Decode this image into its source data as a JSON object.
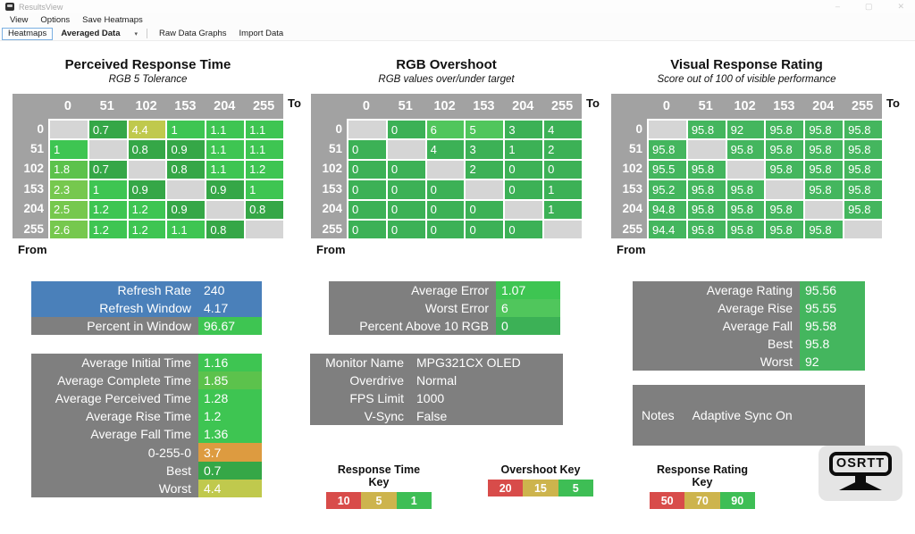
{
  "window": {
    "title": "ResultsView",
    "controls": {
      "minimize": "–",
      "maximize": "▢",
      "close": "✕"
    }
  },
  "menu": {
    "items": [
      "View",
      "Options",
      "Save Heatmaps"
    ]
  },
  "toolbar": {
    "heatmaps": "Heatmaps",
    "view_selected": "Averaged Data",
    "caret": "▾",
    "raw_data_graphs": "Raw Data Graphs",
    "import_data": "Import Data"
  },
  "labels": {
    "to": "To",
    "from": "From"
  },
  "colors": {
    "bright_green": "#3ec552",
    "dark_green": "#35a747",
    "light_green": "#5cc24c",
    "lime_green": "#76c84e",
    "yellow_green": "#c0c94d",
    "orange": "#dd9b40",
    "overshoot_green": "#3cb156",
    "overshoot_light_green": "#50c65c",
    "rating_green": "#44b65e",
    "key_red": "#d84c4a",
    "key_tan": "#cdb44d",
    "key_green": "#3ebe55",
    "blue": "#4a80ba",
    "box_gray": "#7f7f7f",
    "table_header_gray": "#a2a2a2",
    "diag": "#d5d5d5"
  },
  "tables": [
    {
      "title": "Perceived Response Time",
      "subtitle": "RGB 5 Tolerance",
      "columns": [
        "0",
        "51",
        "102",
        "153",
        "204",
        "255"
      ],
      "rows": [
        {
          "label": "0",
          "cells": [
            [
              "",
              "diag"
            ],
            [
              "0.7",
              "dark_green"
            ],
            [
              "4.4",
              "yellow_green"
            ],
            [
              "1",
              "bright_green"
            ],
            [
              "1.1",
              "bright_green"
            ],
            [
              "1.1",
              "bright_green"
            ]
          ]
        },
        {
          "label": "51",
          "cells": [
            [
              "1",
              "bright_green"
            ],
            [
              "",
              "diag"
            ],
            [
              "0.8",
              "dark_green"
            ],
            [
              "0.9",
              "dark_green"
            ],
            [
              "1.1",
              "bright_green"
            ],
            [
              "1.1",
              "bright_green"
            ]
          ]
        },
        {
          "label": "102",
          "cells": [
            [
              "1.8",
              "light_green"
            ],
            [
              "0.7",
              "dark_green"
            ],
            [
              "",
              "diag"
            ],
            [
              "0.8",
              "dark_green"
            ],
            [
              "1.1",
              "bright_green"
            ],
            [
              "1.2",
              "bright_green"
            ]
          ]
        },
        {
          "label": "153",
          "cells": [
            [
              "2.3",
              "lime_green"
            ],
            [
              "1",
              "bright_green"
            ],
            [
              "0.9",
              "dark_green"
            ],
            [
              "",
              "diag"
            ],
            [
              "0.9",
              "dark_green"
            ],
            [
              "1",
              "bright_green"
            ]
          ]
        },
        {
          "label": "204",
          "cells": [
            [
              "2.5",
              "lime_green"
            ],
            [
              "1.2",
              "bright_green"
            ],
            [
              "1.2",
              "bright_green"
            ],
            [
              "0.9",
              "dark_green"
            ],
            [
              "",
              "diag"
            ],
            [
              "0.8",
              "dark_green"
            ]
          ]
        },
        {
          "label": "255",
          "cells": [
            [
              "2.6",
              "lime_green"
            ],
            [
              "1.2",
              "bright_green"
            ],
            [
              "1.2",
              "bright_green"
            ],
            [
              "1.1",
              "bright_green"
            ],
            [
              "0.8",
              "dark_green"
            ],
            [
              "",
              "diag"
            ]
          ]
        }
      ]
    },
    {
      "title": "RGB Overshoot",
      "subtitle": "RGB values over/under target",
      "columns": [
        "0",
        "51",
        "102",
        "153",
        "204",
        "255"
      ],
      "rows": [
        {
          "label": "0",
          "cells": [
            [
              "",
              "diag"
            ],
            [
              "0",
              "overshoot_green"
            ],
            [
              "6",
              "overshoot_light_green"
            ],
            [
              "5",
              "overshoot_light_green"
            ],
            [
              "3",
              "overshoot_green"
            ],
            [
              "4",
              "overshoot_green"
            ]
          ]
        },
        {
          "label": "51",
          "cells": [
            [
              "0",
              "overshoot_green"
            ],
            [
              "",
              "diag"
            ],
            [
              "4",
              "overshoot_green"
            ],
            [
              "3",
              "overshoot_green"
            ],
            [
              "1",
              "overshoot_green"
            ],
            [
              "2",
              "overshoot_green"
            ]
          ]
        },
        {
          "label": "102",
          "cells": [
            [
              "0",
              "overshoot_green"
            ],
            [
              "0",
              "overshoot_green"
            ],
            [
              "",
              "diag"
            ],
            [
              "2",
              "overshoot_green"
            ],
            [
              "0",
              "overshoot_green"
            ],
            [
              "0",
              "overshoot_green"
            ]
          ]
        },
        {
          "label": "153",
          "cells": [
            [
              "0",
              "overshoot_green"
            ],
            [
              "0",
              "overshoot_green"
            ],
            [
              "0",
              "overshoot_green"
            ],
            [
              "",
              "diag"
            ],
            [
              "0",
              "overshoot_green"
            ],
            [
              "1",
              "overshoot_green"
            ]
          ]
        },
        {
          "label": "204",
          "cells": [
            [
              "0",
              "overshoot_green"
            ],
            [
              "0",
              "overshoot_green"
            ],
            [
              "0",
              "overshoot_green"
            ],
            [
              "0",
              "overshoot_green"
            ],
            [
              "",
              "diag"
            ],
            [
              "1",
              "overshoot_green"
            ]
          ]
        },
        {
          "label": "255",
          "cells": [
            [
              "0",
              "overshoot_green"
            ],
            [
              "0",
              "overshoot_green"
            ],
            [
              "0",
              "overshoot_green"
            ],
            [
              "0",
              "overshoot_green"
            ],
            [
              "0",
              "overshoot_green"
            ],
            [
              "",
              "diag"
            ]
          ]
        }
      ]
    },
    {
      "title": "Visual Response Rating",
      "subtitle": "Score out of 100 of visible performance",
      "columns": [
        "0",
        "51",
        "102",
        "153",
        "204",
        "255"
      ],
      "rows": [
        {
          "label": "0",
          "cells": [
            [
              "",
              "diag"
            ],
            [
              "95.8",
              "rating_green"
            ],
            [
              "92",
              "rating_green"
            ],
            [
              "95.8",
              "rating_green"
            ],
            [
              "95.8",
              "rating_green"
            ],
            [
              "95.8",
              "rating_green"
            ]
          ]
        },
        {
          "label": "51",
          "cells": [
            [
              "95.8",
              "rating_green"
            ],
            [
              "",
              "diag"
            ],
            [
              "95.8",
              "rating_green"
            ],
            [
              "95.8",
              "rating_green"
            ],
            [
              "95.8",
              "rating_green"
            ],
            [
              "95.8",
              "rating_green"
            ]
          ]
        },
        {
          "label": "102",
          "cells": [
            [
              "95.5",
              "rating_green"
            ],
            [
              "95.8",
              "rating_green"
            ],
            [
              "",
              "diag"
            ],
            [
              "95.8",
              "rating_green"
            ],
            [
              "95.8",
              "rating_green"
            ],
            [
              "95.8",
              "rating_green"
            ]
          ]
        },
        {
          "label": "153",
          "cells": [
            [
              "95.2",
              "rating_green"
            ],
            [
              "95.8",
              "rating_green"
            ],
            [
              "95.8",
              "rating_green"
            ],
            [
              "",
              "diag"
            ],
            [
              "95.8",
              "rating_green"
            ],
            [
              "95.8",
              "rating_green"
            ]
          ]
        },
        {
          "label": "204",
          "cells": [
            [
              "94.8",
              "rating_green"
            ],
            [
              "95.8",
              "rating_green"
            ],
            [
              "95.8",
              "rating_green"
            ],
            [
              "95.8",
              "rating_green"
            ],
            [
              "",
              "diag"
            ],
            [
              "95.8",
              "rating_green"
            ]
          ]
        },
        {
          "label": "255",
          "cells": [
            [
              "94.4",
              "rating_green"
            ],
            [
              "95.8",
              "rating_green"
            ],
            [
              "95.8",
              "rating_green"
            ],
            [
              "95.8",
              "rating_green"
            ],
            [
              "95.8",
              "rating_green"
            ],
            [
              "",
              "diag"
            ]
          ]
        }
      ]
    }
  ],
  "stat_boxes": [
    {
      "id": "refresh-summary",
      "rows": [
        {
          "label": "Refresh Rate",
          "value": "240",
          "row_bg": "blue",
          "value_bg": ""
        },
        {
          "label": "Refresh Window",
          "value": "4.17",
          "row_bg": "blue",
          "value_bg": ""
        },
        {
          "label": "Percent in Window",
          "value": "96.67",
          "row_bg": "",
          "value_bg": "bright_green"
        }
      ]
    },
    {
      "id": "response-time-summary",
      "rows": [
        {
          "label": "Average Initial Time",
          "value": "1.16",
          "row_bg": "",
          "value_bg": "bright_green"
        },
        {
          "label": "Average Complete Time",
          "value": "1.85",
          "row_bg": "",
          "value_bg": "light_green"
        },
        {
          "label": "Average Perceived Time",
          "value": "1.28",
          "row_bg": "",
          "value_bg": "bright_green"
        },
        {
          "label": "Average Rise Time",
          "value": "1.2",
          "row_bg": "",
          "value_bg": "bright_green"
        },
        {
          "label": "Average Fall Time",
          "value": "1.36",
          "row_bg": "",
          "value_bg": "bright_green"
        },
        {
          "label": "0-255-0",
          "value": "3.7",
          "row_bg": "",
          "value_bg": "orange"
        },
        {
          "label": "Best",
          "value": "0.7",
          "row_bg": "",
          "value_bg": "dark_green"
        },
        {
          "label": "Worst",
          "value": "4.4",
          "row_bg": "",
          "value_bg": "yellow_green"
        }
      ]
    },
    {
      "id": "overshoot-summary",
      "rows": [
        {
          "label": "Average Error",
          "value": "1.07",
          "row_bg": "",
          "value_bg": "bright_green"
        },
        {
          "label": "Worst Error",
          "value": "6",
          "row_bg": "",
          "value_bg": "overshoot_light_green"
        },
        {
          "label": "Percent Above 10 RGB",
          "value": "0",
          "row_bg": "",
          "value_bg": "overshoot_green"
        }
      ]
    },
    {
      "id": "monitor-info",
      "label_width": 113,
      "rows": [
        {
          "label": "Monitor Name",
          "value": "MPG321CX OLED",
          "row_bg": "",
          "value_bg": ""
        },
        {
          "label": "Overdrive",
          "value": "Normal",
          "row_bg": "",
          "value_bg": ""
        },
        {
          "label": "FPS Limit",
          "value": "1000",
          "row_bg": "",
          "value_bg": ""
        },
        {
          "label": "V-Sync",
          "value": "False",
          "row_bg": "",
          "value_bg": ""
        }
      ]
    },
    {
      "id": "rating-summary",
      "rows": [
        {
          "label": "Average Rating",
          "value": "95.56",
          "row_bg": "",
          "value_bg": "rating_green"
        },
        {
          "label": "Average Rise",
          "value": "95.55",
          "row_bg": "",
          "value_bg": "rating_green"
        },
        {
          "label": "Average Fall",
          "value": "95.58",
          "row_bg": "",
          "value_bg": "rating_green"
        },
        {
          "label": "Best",
          "value": "95.8",
          "row_bg": "",
          "value_bg": "rating_green"
        },
        {
          "label": "Worst",
          "value": "92",
          "row_bg": "",
          "value_bg": "rating_green"
        }
      ]
    },
    {
      "id": "notes",
      "rows": [
        {
          "label": "Notes",
          "value": "Adaptive Sync On",
          "row_bg": "",
          "value_bg": ""
        }
      ]
    }
  ],
  "keys": [
    {
      "title": "Response Time Key",
      "segments": [
        {
          "label": "10",
          "color": "key_red"
        },
        {
          "label": "5",
          "color": "key_tan"
        },
        {
          "label": "1",
          "color": "key_green"
        }
      ]
    },
    {
      "title": "Overshoot Key",
      "segments": [
        {
          "label": "20",
          "color": "key_red"
        },
        {
          "label": "15",
          "color": "key_tan"
        },
        {
          "label": "5",
          "color": "key_green"
        }
      ]
    },
    {
      "title": "Response Rating Key",
      "segments": [
        {
          "label": "50",
          "color": "key_red"
        },
        {
          "label": "70",
          "color": "key_tan"
        },
        {
          "label": "90",
          "color": "key_green"
        }
      ]
    }
  ],
  "logo": {
    "text": "OSRTT"
  }
}
